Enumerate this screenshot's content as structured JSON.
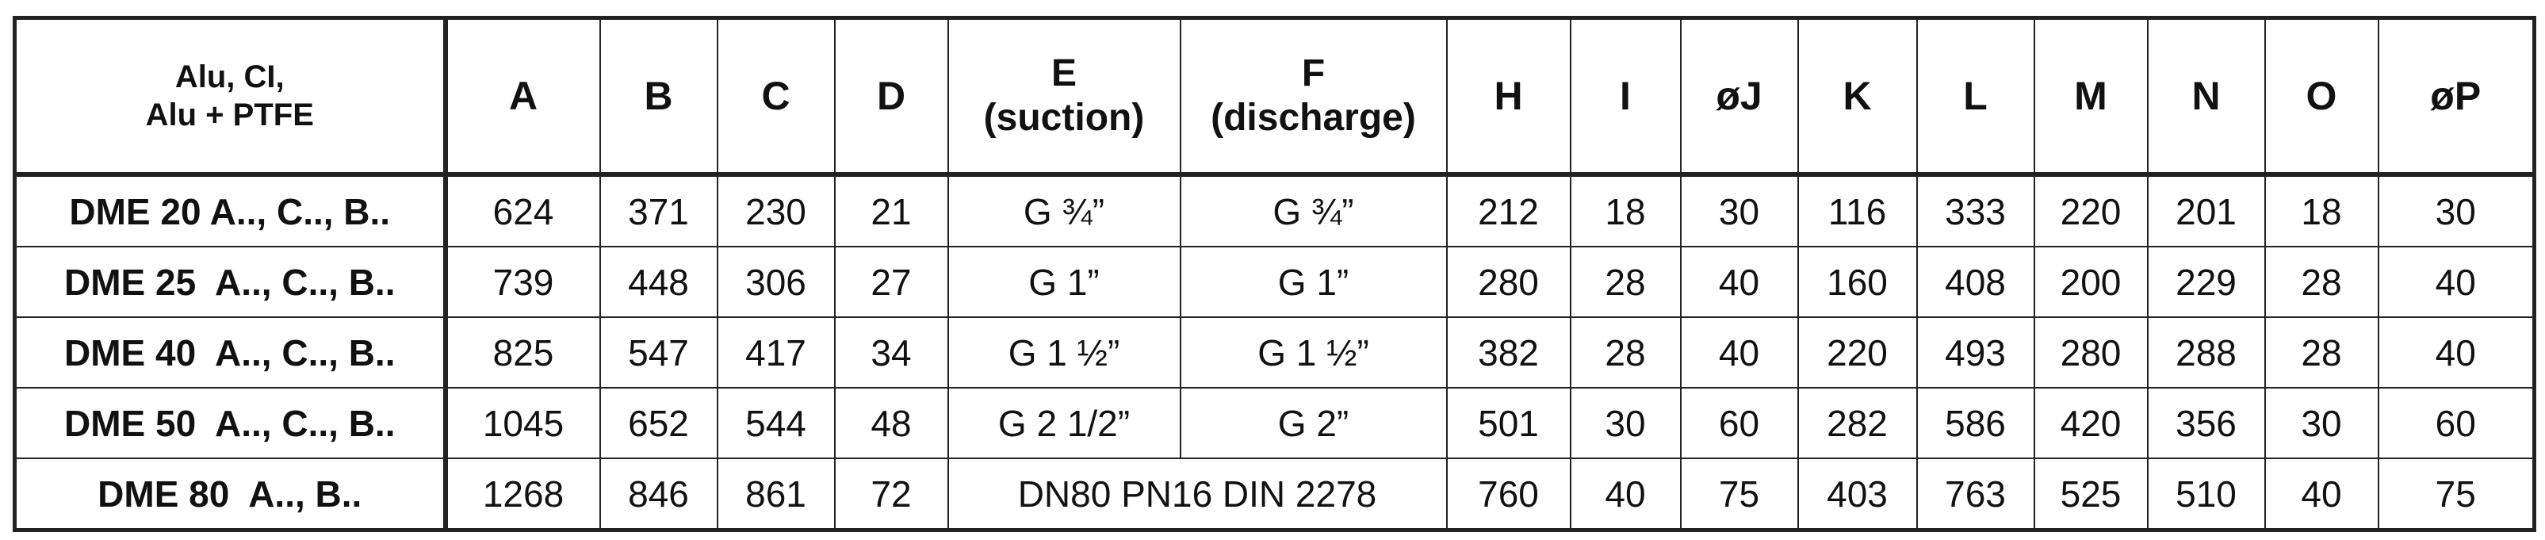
{
  "table": {
    "header": [
      "Alu, CI,\nAlu + PTFE",
      "A",
      "B",
      "C",
      "D",
      "E\n(suction)",
      "F\n(discharge)",
      "H",
      "I",
      "øJ",
      "K",
      "L",
      "M",
      "N",
      "O",
      "øP"
    ],
    "rows": [
      {
        "label": "DME 20 A.., C.., B..",
        "cells": [
          624,
          371,
          230,
          21,
          "G ¾”",
          "G ¾”",
          212,
          18,
          30,
          116,
          333,
          220,
          201,
          18,
          30
        ]
      },
      {
        "label": "DME 25  A.., C.., B..",
        "cells": [
          739,
          448,
          306,
          27,
          "G 1”",
          "G 1”",
          280,
          28,
          40,
          160,
          408,
          200,
          229,
          28,
          40
        ]
      },
      {
        "label": "DME 40  A.., C.., B..",
        "cells": [
          825,
          547,
          417,
          34,
          "G 1 ½”",
          "G  1 ½”",
          382,
          28,
          40,
          220,
          493,
          280,
          288,
          28,
          40
        ]
      },
      {
        "label": "DME 50  A.., C.., B..",
        "cells": [
          1045,
          652,
          544,
          48,
          "G 2 1/2”",
          "G 2”",
          501,
          30,
          60,
          282,
          586,
          420,
          356,
          30,
          60
        ]
      },
      {
        "label": "DME 80  A.., B..",
        "cells": [
          1268,
          846,
          861,
          72,
          "DN80 PN16 DIN 2278",
          760,
          40,
          75,
          403,
          763,
          525,
          510,
          40,
          75
        ]
      }
    ]
  }
}
